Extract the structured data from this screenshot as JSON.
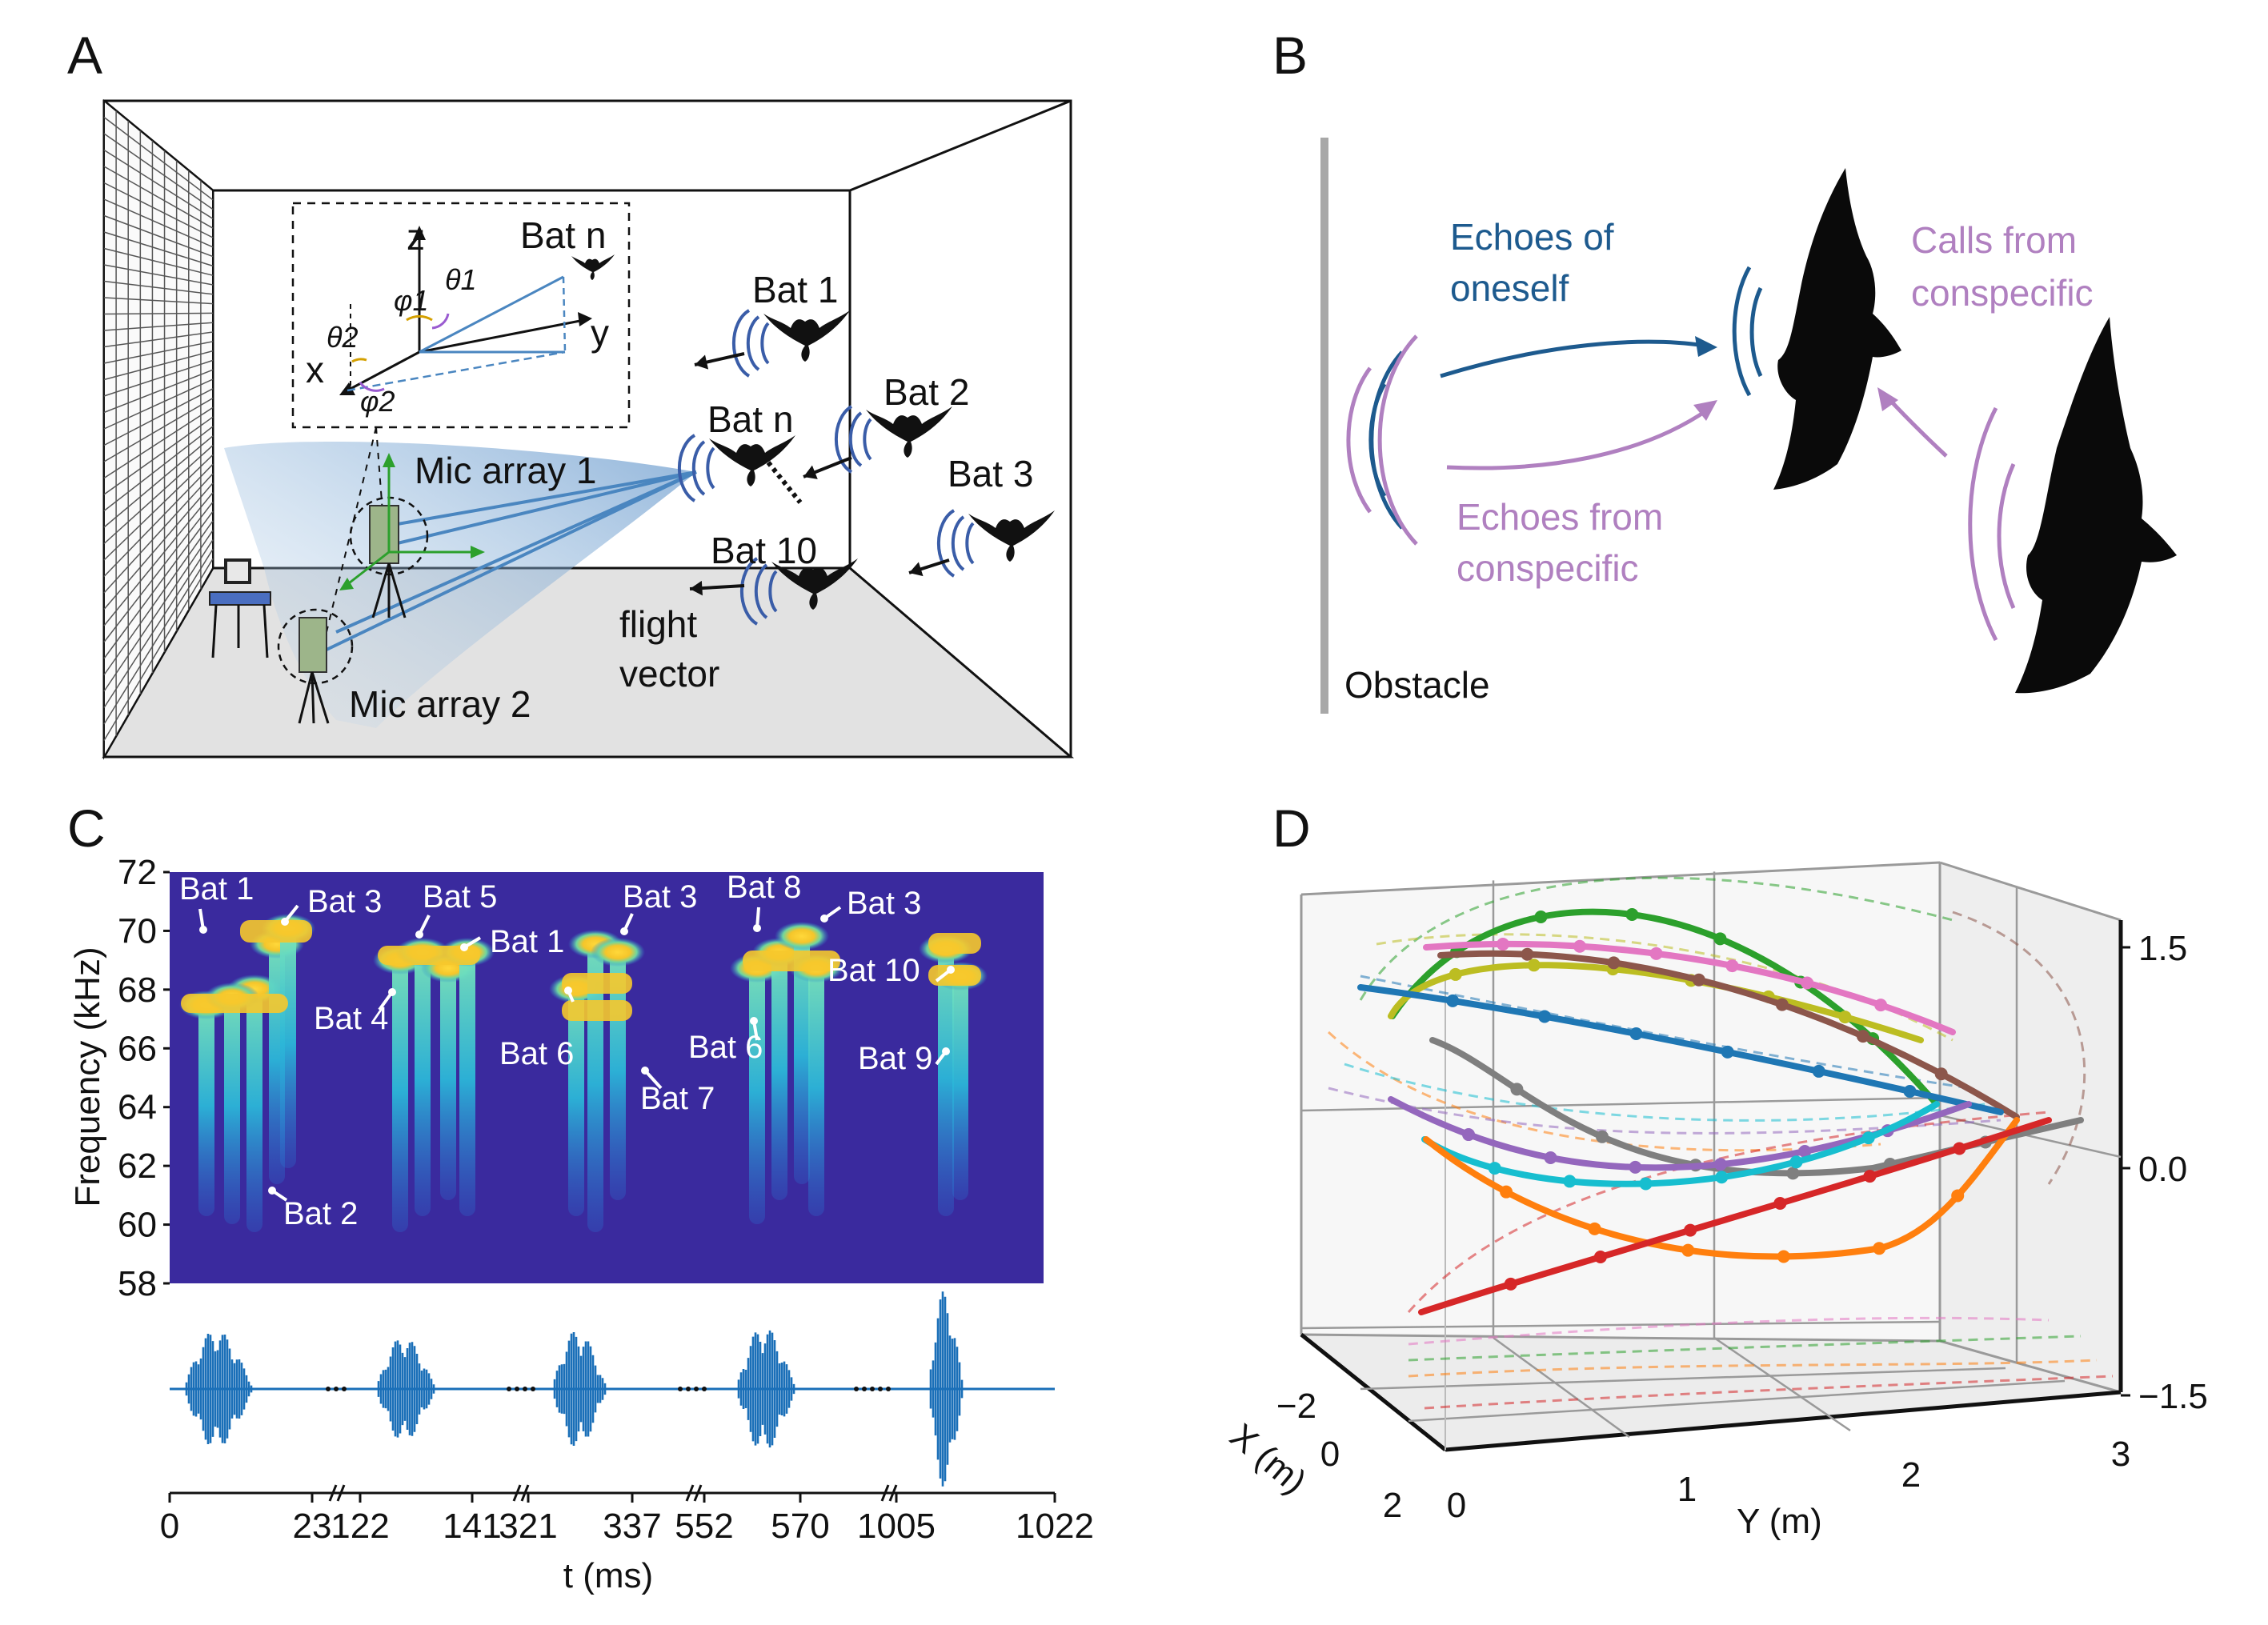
{
  "panels": {
    "a": {
      "letter": "A",
      "labels": {
        "bat_n_inset": "Bat n",
        "z": "z",
        "y": "y",
        "x": "x",
        "phi1": "φ1",
        "theta1": "θ1",
        "theta2": "θ2",
        "phi2": "φ2",
        "bat1": "Bat 1",
        "bat2": "Bat 2",
        "bat3": "Bat 3",
        "bat_n": "Bat n",
        "bat10": "Bat 10",
        "mic1": "Mic array 1",
        "mic2": "Mic array 2",
        "flight": "flight",
        "vector": "vector"
      }
    },
    "b": {
      "letter": "B",
      "labels": {
        "echoes_oneself_1": "Echoes of",
        "echoes_oneself_2": "oneself",
        "calls_1": "Calls from",
        "calls_2": "conspecific",
        "echoes_consp_1": "Echoes from",
        "echoes_consp_2": "conspecific",
        "obstacle": "Obstacle"
      },
      "colors": {
        "self": "#1d5a8e",
        "conspecific": "#b080c0"
      }
    },
    "c": {
      "letter": "C",
      "ylabel": "Frequency (kHz)",
      "yticks": [
        "72",
        "70",
        "68",
        "66",
        "64",
        "62",
        "60",
        "58"
      ],
      "xlabel": "t (ms)",
      "xticks": [
        "0",
        "23",
        "122",
        "141",
        "321",
        "337",
        "552",
        "570",
        "1005",
        "1022"
      ],
      "bat_labels": [
        "Bat 1",
        "Bat 3",
        "Bat 5",
        "Bat 1",
        "Bat 3",
        "Bat 8",
        "Bat 3",
        "Bat 4",
        "Bat 6",
        "Bat 7",
        "Bat 6",
        "Bat 10",
        "Bat 9",
        "Bat 2"
      ],
      "colors": {
        "background": "#3a2a9e",
        "waveform": "#1a6fb8"
      }
    },
    "d": {
      "letter": "D",
      "xlabel": "X (m)",
      "ylabel": "Y (m)",
      "xticks": [
        "−2",
        "0",
        "2"
      ],
      "yticks": [
        "0",
        "1",
        "2",
        "3"
      ],
      "zticks": [
        "1.5",
        "0.0",
        "−1.5"
      ],
      "colors": [
        "#2ca02c",
        "#e377c2",
        "#bcbd22",
        "#8c564b",
        "#1f77b4",
        "#7f7f7f",
        "#9467bd",
        "#17becf",
        "#ff7f0e",
        "#d62728"
      ]
    }
  }
}
